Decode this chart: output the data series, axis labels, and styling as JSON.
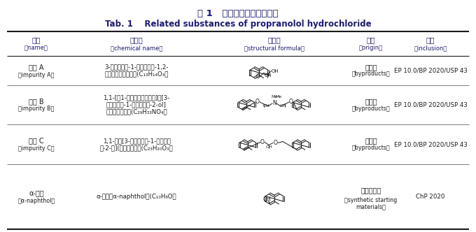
{
  "title_cn": "表 1   盐酸普萘洛尔有关物质",
  "title_en": "Tab. 1    Related substances of propranolol hydrochloride",
  "title_color": "#1a1a6e",
  "bg_color": "#f5f5f0",
  "col_headers_cn": [
    "名称",
    "化学名",
    "结构式",
    "来源",
    "收录"
  ],
  "col_headers_en": [
    "（name）",
    "（chemical name）",
    "（structural formula）",
    "（origin）",
    "（inclusion）"
  ],
  "rows": [
    {
      "name_cn": "杂质 A",
      "name_en": "（impurity A）",
      "chem_line1": "3-（萘亚甲基-1-氧基）丙烷-1,2-",
      "chem_line2": "二醇（二醇衍生物）(C₁₃H₁₄O₃）",
      "origin_cn": "副产物",
      "origin_en": "（byproducts）",
      "inclusion": "EP 10.0/BP 2020/USP 43"
    },
    {
      "name_cn": "杂质 B",
      "name_en": "（impurity B）",
      "chem_line1": "1,1-[（1-甲基乙基）亚胺基]二[3-",
      "chem_line2": "（萘亚甲基-1-氧基）丙烷-2-ol]",
      "chem_line3": "（叔胺衍生物）(C₂₉H₃₃NO₄）",
      "origin_cn": "副产物",
      "origin_en": "（byproducts）",
      "inclusion": "EP 10.0/BP 2020/USP 43"
    },
    {
      "name_cn": "杂质 C",
      "name_en": "（impurity C）",
      "chem_line1": "1,1-氧基[3-（萘亚甲基-1-氧基）丙",
      "chem_line2": "烷-2-醇](二醚衍生物）(C₂₃H₂₀O₃）",
      "origin_cn": "副产物",
      "origin_en": "（byproducts）",
      "inclusion": "EP 10.0/BP 2020/USP 43"
    },
    {
      "name_cn": "α-萘酚",
      "name_en": "（α-naphthol）",
      "chem_line1": "α-萘酚（α-naphthol）(C₁₀H₈O）",
      "origin_cn": "合成起始物",
      "origin_en": "（synthetic starting",
      "origin_en2": "materials）",
      "inclusion": "ChP 2020"
    }
  ],
  "line_color": "#1a1a1a",
  "text_color": "#1a1a1a",
  "header_text_color": "#1a1a6e"
}
